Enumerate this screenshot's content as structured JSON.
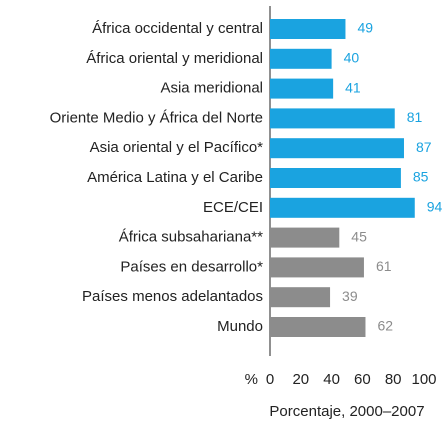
{
  "chart_data": {
    "type": "barh",
    "categories": [
      "África occidental y central",
      "África oriental y meridional",
      "Asia meridional",
      "Oriente Medio y África del Norte",
      "Asia oriental y el Pacífico*",
      "América Latina y el Caribe",
      "ECE/CEI",
      "África subsahariana**",
      "Países en desarrollo*",
      "Países menos adelantados",
      "Mundo"
    ],
    "values": [
      49,
      40,
      41,
      81,
      87,
      85,
      94,
      45,
      61,
      39,
      62
    ],
    "colors": [
      "#1aa3e0",
      "#1aa3e0",
      "#1aa3e0",
      "#1aa3e0",
      "#1aa3e0",
      "#1aa3e0",
      "#1aa3e0",
      "#8c8c8c",
      "#8c8c8c",
      "#8c8c8c",
      "#8c8c8c"
    ],
    "xlim": [
      0,
      100
    ],
    "xticks": [
      0,
      20,
      40,
      60,
      80,
      100
    ],
    "xunit": "%",
    "xlabel": "Porcentaje, 2000–2007"
  }
}
